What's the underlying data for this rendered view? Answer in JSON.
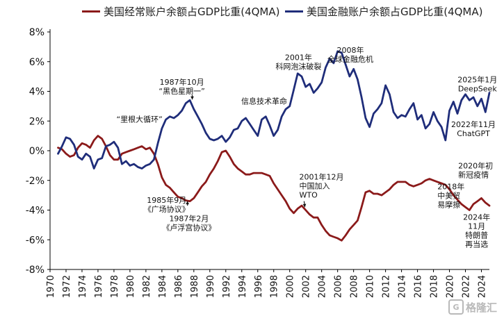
{
  "legend": [
    {
      "name": "美国经常账户余额占GDP比重(4QMA)",
      "color": "#8b1a1a"
    },
    {
      "name": "美国金融账户余额占GDP比重(4QMA)",
      "color": "#1f2d7a"
    }
  ],
  "watermark": {
    "text": "格隆汇",
    "logo": "G"
  },
  "chart_data": {
    "type": "line",
    "xlim": [
      1970,
      2025
    ],
    "ylim": [
      -8,
      8
    ],
    "yticks": [
      8,
      6,
      4,
      2,
      0,
      -2,
      -4,
      -6,
      -8
    ],
    "ytick_labels": [
      "8%",
      "6%",
      "4%",
      "2%",
      "0%",
      "-2%",
      "-4%",
      "-6%",
      "-8%"
    ],
    "xticks": [
      1970,
      1972,
      1974,
      1976,
      1978,
      1980,
      1982,
      1984,
      1986,
      1988,
      1990,
      1992,
      1994,
      1996,
      1998,
      2000,
      2002,
      2004,
      2006,
      2008,
      2010,
      2012,
      2014,
      2016,
      2018,
      2020,
      2022,
      2024
    ],
    "grid": false,
    "legend_position": "top",
    "series": [
      {
        "name": "美国经常账户余额占GDP比重(4QMA)",
        "color": "#8b1a1a",
        "points": [
          [
            1971,
            0.2
          ],
          [
            1971.5,
            0.1
          ],
          [
            1972,
            -0.2
          ],
          [
            1972.5,
            -0.4
          ],
          [
            1973,
            -0.3
          ],
          [
            1973.5,
            0.2
          ],
          [
            1974,
            0.5
          ],
          [
            1974.5,
            0.4
          ],
          [
            1975,
            0.2
          ],
          [
            1975.5,
            0.7
          ],
          [
            1976,
            1.0
          ],
          [
            1976.5,
            0.8
          ],
          [
            1977,
            0.3
          ],
          [
            1977.5,
            -0.3
          ],
          [
            1978,
            -0.6
          ],
          [
            1978.5,
            -0.6
          ],
          [
            1979,
            -0.2
          ],
          [
            1979.5,
            -0.1
          ],
          [
            1980,
            0.0
          ],
          [
            1980.5,
            0.1
          ],
          [
            1981,
            0.2
          ],
          [
            1981.5,
            0.3
          ],
          [
            1982,
            0.1
          ],
          [
            1982.5,
            0.2
          ],
          [
            1983,
            -0.2
          ],
          [
            1983.5,
            -0.9
          ],
          [
            1984,
            -1.8
          ],
          [
            1984.5,
            -2.3
          ],
          [
            1985,
            -2.5
          ],
          [
            1985.5,
            -2.8
          ],
          [
            1986,
            -3.1
          ],
          [
            1986.5,
            -3.2
          ],
          [
            1987,
            -3.35
          ],
          [
            1987.5,
            -3.4
          ],
          [
            1988,
            -3.2
          ],
          [
            1988.5,
            -2.8
          ],
          [
            1989,
            -2.4
          ],
          [
            1989.5,
            -2.1
          ],
          [
            1990,
            -1.6
          ],
          [
            1990.5,
            -1.2
          ],
          [
            1991,
            -0.7
          ],
          [
            1991.5,
            -0.1
          ],
          [
            1992,
            0.0
          ],
          [
            1992.5,
            -0.4
          ],
          [
            1993,
            -0.9
          ],
          [
            1993.5,
            -1.2
          ],
          [
            1994,
            -1.4
          ],
          [
            1994.5,
            -1.6
          ],
          [
            1995,
            -1.6
          ],
          [
            1995.5,
            -1.5
          ],
          [
            1996,
            -1.5
          ],
          [
            1996.5,
            -1.5
          ],
          [
            1997,
            -1.6
          ],
          [
            1997.5,
            -1.7
          ],
          [
            1998,
            -2.2
          ],
          [
            1998.5,
            -2.6
          ],
          [
            1999,
            -3.0
          ],
          [
            1999.5,
            -3.4
          ],
          [
            2000,
            -3.9
          ],
          [
            2000.5,
            -4.2
          ],
          [
            2001,
            -3.9
          ],
          [
            2001.5,
            -3.7
          ],
          [
            2002,
            -4.0
          ],
          [
            2002.5,
            -4.3
          ],
          [
            2003,
            -4.5
          ],
          [
            2003.5,
            -4.5
          ],
          [
            2004,
            -5.0
          ],
          [
            2004.5,
            -5.4
          ],
          [
            2005,
            -5.7
          ],
          [
            2005.5,
            -5.8
          ],
          [
            2006,
            -5.9
          ],
          [
            2006.5,
            -6.05
          ],
          [
            2007,
            -5.7
          ],
          [
            2007.5,
            -5.3
          ],
          [
            2008,
            -5.0
          ],
          [
            2008.5,
            -4.7
          ],
          [
            2009,
            -3.8
          ],
          [
            2009.5,
            -2.8
          ],
          [
            2010,
            -2.7
          ],
          [
            2010.5,
            -2.9
          ],
          [
            2011,
            -2.9
          ],
          [
            2011.5,
            -3.0
          ],
          [
            2012,
            -2.8
          ],
          [
            2012.5,
            -2.6
          ],
          [
            2013,
            -2.3
          ],
          [
            2013.5,
            -2.1
          ],
          [
            2014,
            -2.1
          ],
          [
            2014.5,
            -2.1
          ],
          [
            2015,
            -2.3
          ],
          [
            2015.5,
            -2.4
          ],
          [
            2016,
            -2.3
          ],
          [
            2016.5,
            -2.2
          ],
          [
            2017,
            -2.0
          ],
          [
            2017.5,
            -1.9
          ],
          [
            2018,
            -2.0
          ],
          [
            2018.5,
            -2.1
          ],
          [
            2019,
            -2.2
          ],
          [
            2019.5,
            -2.3
          ],
          [
            2020,
            -2.6
          ],
          [
            2020.5,
            -3.0
          ],
          [
            2021,
            -3.3
          ],
          [
            2021.5,
            -3.6
          ],
          [
            2022,
            -3.8
          ],
          [
            2022.5,
            -4.0
          ],
          [
            2023,
            -3.6
          ],
          [
            2023.5,
            -3.4
          ],
          [
            2024,
            -3.2
          ],
          [
            2024.5,
            -3.5
          ],
          [
            2025,
            -3.7
          ]
        ]
      },
      {
        "name": "美国金融账户余额占GDP比重(4QMA)",
        "color": "#1f2d7a",
        "points": [
          [
            1971,
            -0.2
          ],
          [
            1971.5,
            0.3
          ],
          [
            1972,
            0.9
          ],
          [
            1972.5,
            0.8
          ],
          [
            1973,
            0.4
          ],
          [
            1973.5,
            -0.4
          ],
          [
            1974,
            -0.6
          ],
          [
            1974.5,
            -0.2
          ],
          [
            1975,
            -0.4
          ],
          [
            1975.5,
            -1.2
          ],
          [
            1976,
            -0.6
          ],
          [
            1976.5,
            -0.5
          ],
          [
            1977,
            0.3
          ],
          [
            1977.5,
            0.4
          ],
          [
            1978,
            0.6
          ],
          [
            1978.5,
            0.2
          ],
          [
            1979,
            -0.9
          ],
          [
            1979.5,
            -0.7
          ],
          [
            1980,
            -1.0
          ],
          [
            1980.5,
            -0.9
          ],
          [
            1981,
            -1.1
          ],
          [
            1981.5,
            -1.2
          ],
          [
            1982,
            -1.0
          ],
          [
            1982.5,
            -0.9
          ],
          [
            1983,
            -0.6
          ],
          [
            1983.5,
            0.5
          ],
          [
            1984,
            1.5
          ],
          [
            1984.5,
            2.1
          ],
          [
            1985,
            2.3
          ],
          [
            1985.5,
            2.2
          ],
          [
            1986,
            2.4
          ],
          [
            1986.5,
            2.7
          ],
          [
            1987,
            3.2
          ],
          [
            1987.5,
            3.4
          ],
          [
            1988,
            2.8
          ],
          [
            1988.5,
            2.3
          ],
          [
            1989,
            1.8
          ],
          [
            1989.5,
            1.2
          ],
          [
            1990,
            0.8
          ],
          [
            1990.5,
            0.7
          ],
          [
            1991,
            0.8
          ],
          [
            1991.5,
            1.0
          ],
          [
            1992,
            0.6
          ],
          [
            1992.5,
            0.9
          ],
          [
            1993,
            1.4
          ],
          [
            1993.5,
            1.5
          ],
          [
            1994,
            2.0
          ],
          [
            1994.5,
            2.2
          ],
          [
            1995,
            1.8
          ],
          [
            1995.5,
            1.4
          ],
          [
            1996,
            1.0
          ],
          [
            1996.5,
            2.1
          ],
          [
            1997,
            2.3
          ],
          [
            1997.5,
            1.7
          ],
          [
            1998,
            1.0
          ],
          [
            1998.5,
            1.4
          ],
          [
            1999,
            2.3
          ],
          [
            1999.5,
            2.8
          ],
          [
            2000,
            3.0
          ],
          [
            2000.5,
            4.1
          ],
          [
            2001,
            5.2
          ],
          [
            2001.5,
            5.0
          ],
          [
            2002,
            4.3
          ],
          [
            2002.5,
            4.5
          ],
          [
            2003,
            3.9
          ],
          [
            2003.5,
            4.2
          ],
          [
            2004,
            4.6
          ],
          [
            2004.5,
            5.6
          ],
          [
            2005,
            6.2
          ],
          [
            2005.5,
            5.9
          ],
          [
            2006,
            6.7
          ],
          [
            2006.5,
            6.6
          ],
          [
            2007,
            5.8
          ],
          [
            2007.5,
            5.0
          ],
          [
            2008,
            5.5
          ],
          [
            2008.5,
            4.8
          ],
          [
            2009,
            3.6
          ],
          [
            2009.5,
            2.2
          ],
          [
            2010,
            1.6
          ],
          [
            2010.5,
            2.5
          ],
          [
            2011,
            2.8
          ],
          [
            2011.5,
            3.2
          ],
          [
            2012,
            4.4
          ],
          [
            2012.5,
            3.8
          ],
          [
            2013,
            2.6
          ],
          [
            2013.5,
            2.2
          ],
          [
            2014,
            2.4
          ],
          [
            2014.5,
            2.3
          ],
          [
            2015,
            2.8
          ],
          [
            2015.5,
            3.2
          ],
          [
            2016,
            2.1
          ],
          [
            2016.5,
            2.4
          ],
          [
            2017,
            1.5
          ],
          [
            2017.5,
            1.8
          ],
          [
            2018,
            2.6
          ],
          [
            2018.5,
            2.0
          ],
          [
            2019,
            1.6
          ],
          [
            2019.5,
            0.7
          ],
          [
            2020,
            2.7
          ],
          [
            2020.5,
            3.3
          ],
          [
            2021,
            2.5
          ],
          [
            2021.5,
            3.4
          ],
          [
            2022,
            3.8
          ],
          [
            2022.5,
            3.4
          ],
          [
            2023,
            3.6
          ],
          [
            2023.5,
            3.0
          ],
          [
            2024,
            3.5
          ],
          [
            2024.5,
            2.6
          ],
          [
            2025,
            3.9
          ]
        ]
      }
    ],
    "annotations": [
      {
        "id": "reagan",
        "lines": [
          "“里根大循环”"
        ],
        "x": 1981.2,
        "y": 1.95,
        "align": "middle"
      },
      {
        "id": "blackmonday",
        "lines": [
          "1987年10月",
          "“黑色星期一”"
        ],
        "x": 1986.5,
        "y": 4.45,
        "align": "middle"
      },
      {
        "id": "infotech",
        "lines": [
          "信息技术革命"
        ],
        "x": 1996.8,
        "y": 3.15,
        "align": "middle"
      },
      {
        "id": "dotcom",
        "lines": [
          "2001年",
          "科网泡沫破裂"
        ],
        "x": 2001.1,
        "y": 6.1,
        "align": "middle"
      },
      {
        "id": "gfc",
        "lines": [
          "2008年",
          "全球金融危机"
        ],
        "x": 2007.6,
        "y": 6.6,
        "align": "middle"
      },
      {
        "id": "deepseek",
        "lines": [
          "2025年1月",
          "DeepSeek"
        ],
        "x": 2023.5,
        "y": 4.6,
        "align": "middle"
      },
      {
        "id": "chatgpt",
        "lines": [
          "2022年11月",
          "ChatGPT"
        ],
        "x": 2023.0,
        "y": 1.6,
        "align": "middle"
      },
      {
        "id": "plaza",
        "lines": [
          "1985年9月",
          "《广场协议》"
        ],
        "x": 1984.6,
        "y": -3.5,
        "align": "middle"
      },
      {
        "id": "louvre",
        "lines": [
          "1987年2月",
          "《卢浮宫协议》"
        ],
        "x": 1987.4,
        "y": -4.75,
        "align": "middle"
      },
      {
        "id": "wto",
        "lines": [
          "2001年12月",
          "中国加入",
          "WTO"
        ],
        "x": 2001.2,
        "y": -1.95,
        "align": "start"
      },
      {
        "id": "covid",
        "lines": [
          "2020年初",
          "新冠疫情"
        ],
        "x": 2021.1,
        "y": -1.2,
        "align": "start"
      },
      {
        "id": "tradewar",
        "lines": [
          "2018年",
          "中美贸",
          "易摩擦"
        ],
        "x": 2018.5,
        "y": -2.6,
        "align": "start"
      },
      {
        "id": "trump",
        "lines": [
          "2024年",
          "11月",
          "特朗普",
          "再当选"
        ],
        "x": 2023.4,
        "y": -4.65,
        "align": "middle"
      }
    ],
    "markers": [
      {
        "id": "wto-arrow",
        "from": [
          2001.8,
          -3.4
        ],
        "to": [
          2001.9,
          -3.8
        ]
      },
      {
        "id": "louvre-arrow",
        "from": [
          1987.2,
          -3.7
        ],
        "to": [
          1987.2,
          -3.4
        ]
      },
      {
        "id": "blackmonday-arrow",
        "from": [
          1987.8,
          3.75
        ],
        "to": [
          1987.8,
          3.45
        ]
      }
    ]
  }
}
